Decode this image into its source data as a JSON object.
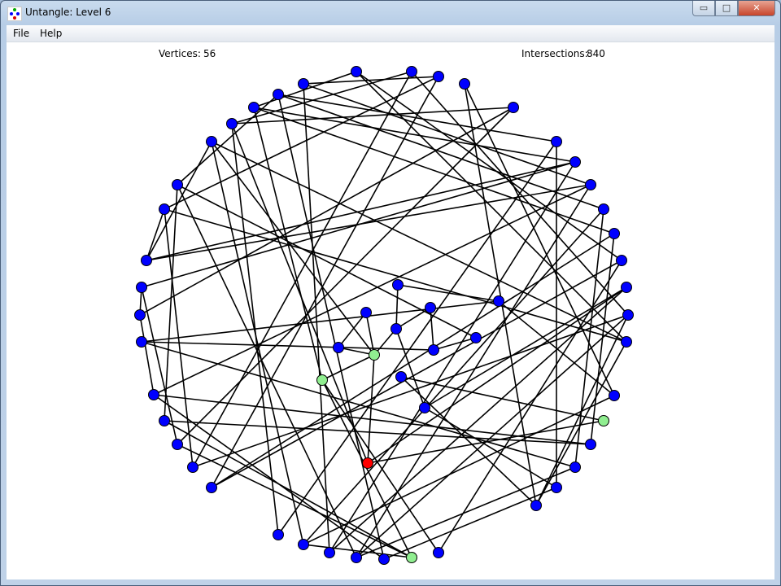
{
  "window": {
    "title": "Untangle: Level 6",
    "controls": {
      "minimize": "▭",
      "maximize": "□",
      "close": "✕"
    }
  },
  "menu": {
    "items": [
      {
        "label": "File"
      },
      {
        "label": "Help"
      }
    ]
  },
  "stats": {
    "vertices_label": "Vertices:",
    "vertices": "56",
    "intersections_label": "Intersections:",
    "intersections": "840"
  },
  "colors": {
    "vertex": "#0000ff",
    "vertex_highlight": "#90ee90",
    "vertex_selected": "#ff0000",
    "edge": "#000000"
  },
  "graph": {
    "vertex_states": {
      "highlighted": [
        32,
        34,
        40,
        54
      ],
      "selected": [
        47
      ]
    },
    "edges": [
      [
        4,
        2
      ],
      [
        0,
        6
      ],
      [
        4,
        13
      ],
      [
        5,
        15
      ],
      [
        5,
        10
      ],
      [
        6,
        11
      ],
      [
        1,
        8
      ],
      [
        1,
        43
      ],
      [
        2,
        45
      ],
      [
        0,
        18
      ],
      [
        3,
        48
      ],
      [
        7,
        8
      ],
      [
        7,
        21
      ],
      [
        7,
        41
      ],
      [
        9,
        50
      ],
      [
        8,
        49
      ],
      [
        5,
        53
      ],
      [
        4,
        51
      ],
      [
        17,
        14
      ],
      [
        17,
        9
      ],
      [
        17,
        11
      ],
      [
        17,
        13
      ],
      [
        19,
        21
      ],
      [
        12,
        5
      ],
      [
        12,
        30
      ],
      [
        12,
        52
      ],
      [
        15,
        44
      ],
      [
        16,
        42
      ],
      [
        18,
        45
      ],
      [
        20,
        51
      ],
      [
        22,
        43
      ],
      [
        24,
        9
      ],
      [
        24,
        14
      ],
      [
        22,
        52
      ],
      [
        18,
        55
      ],
      [
        24,
        48
      ],
      [
        38,
        50
      ],
      [
        40,
        47
      ],
      [
        42,
        37
      ],
      [
        44,
        52
      ],
      [
        46,
        36
      ],
      [
        48,
        35
      ],
      [
        46,
        53
      ],
      [
        42,
        39
      ],
      [
        10,
        46
      ],
      [
        11,
        19
      ],
      [
        13,
        37
      ],
      [
        16,
        6
      ],
      [
        25,
        29
      ],
      [
        26,
        32
      ],
      [
        27,
        29
      ],
      [
        27,
        33
      ],
      [
        28,
        38
      ],
      [
        29,
        32
      ],
      [
        30,
        33
      ],
      [
        31,
        32
      ],
      [
        31,
        26
      ],
      [
        32,
        34
      ],
      [
        34,
        54
      ],
      [
        33,
        23
      ],
      [
        35,
        40
      ],
      [
        36,
        20
      ],
      [
        47,
        32
      ],
      [
        47,
        20
      ],
      [
        25,
        28
      ],
      [
        34,
        55
      ],
      [
        29,
        36
      ],
      [
        49,
        10
      ],
      [
        50,
        54
      ],
      [
        53,
        37
      ],
      [
        54,
        39
      ],
      [
        54,
        41
      ],
      [
        52,
        13
      ],
      [
        51,
        11
      ],
      [
        50,
        15
      ],
      [
        43,
        14
      ],
      [
        41,
        19
      ],
      [
        39,
        12
      ],
      [
        37,
        21
      ],
      [
        45,
        16
      ],
      [
        44,
        23
      ],
      [
        23,
        28
      ],
      [
        0,
        24
      ],
      [
        2,
        14
      ],
      [
        3,
        38
      ],
      [
        1,
        22
      ],
      [
        9,
        32
      ],
      [
        8,
        47
      ],
      [
        6,
        34
      ],
      [
        48,
        22
      ]
    ]
  }
}
